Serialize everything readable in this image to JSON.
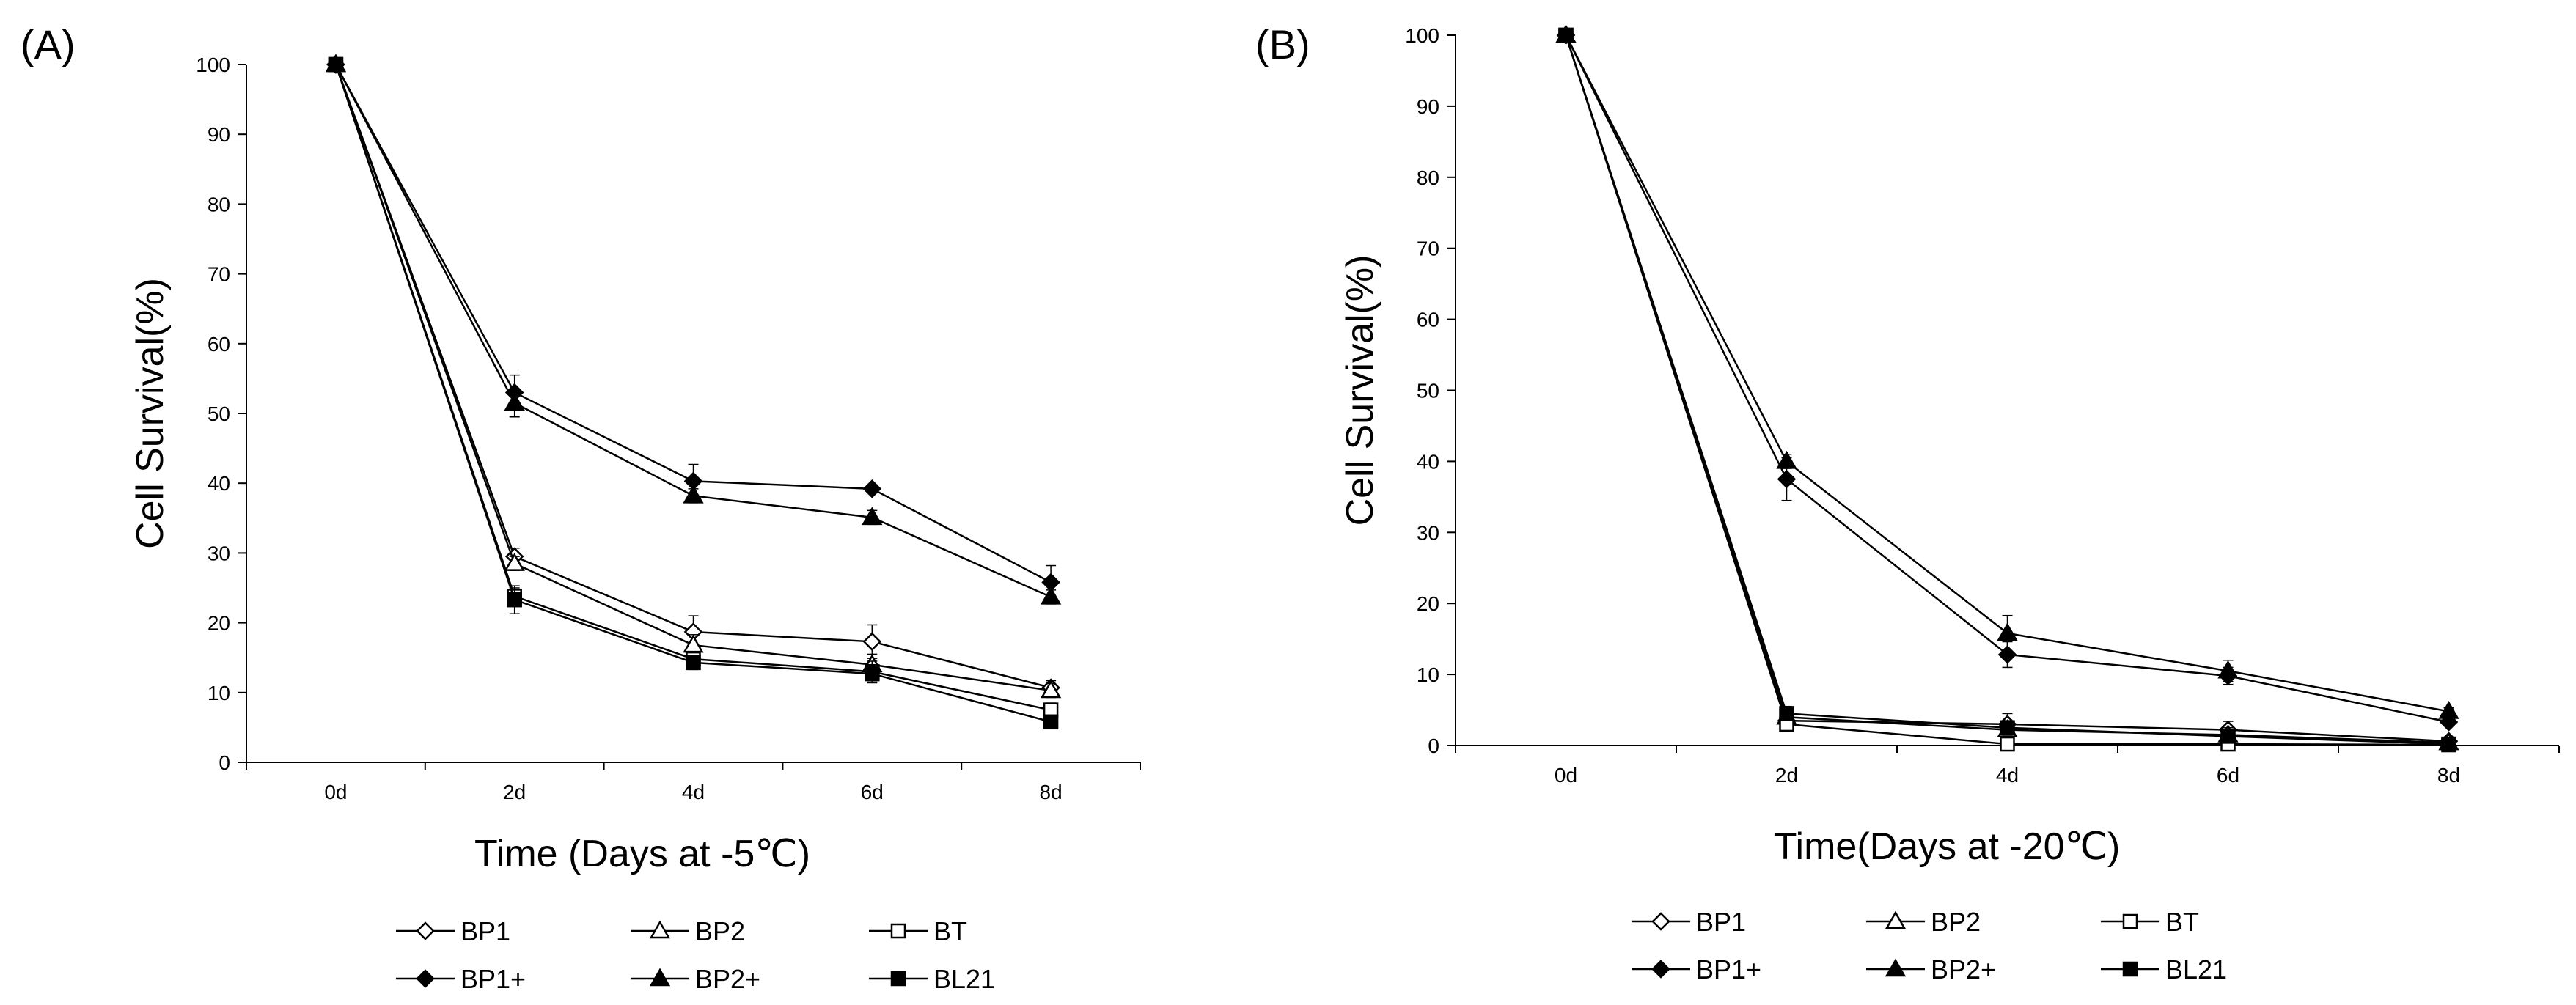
{
  "chart_data": [
    {
      "type": "line",
      "panel_label": "(A)",
      "xlabel": "Time (Days at -5℃)",
      "ylabel": "Cell Survival(%)",
      "categories": [
        "0d",
        "2d",
        "4d",
        "6d",
        "8d"
      ],
      "ylim": [
        0,
        100
      ],
      "yticks": [
        "0",
        "10",
        "20",
        "30",
        "40",
        "50",
        "60",
        "70",
        "80",
        "90",
        "100"
      ],
      "legend_position": "bottom",
      "series": [
        {
          "name": "BP1",
          "marker": "diamond-open",
          "values": [
            100,
            29.5,
            18.7,
            17.3,
            10.7
          ],
          "errors": [
            0,
            1.2,
            2.3,
            2.4,
            1.0
          ]
        },
        {
          "name": "BP2",
          "marker": "triangle-open",
          "values": [
            100,
            28.5,
            16.8,
            14.0,
            10.3
          ],
          "errors": [
            0,
            1.0,
            1.5,
            1.5,
            1.0
          ]
        },
        {
          "name": "BT",
          "marker": "square-open",
          "values": [
            100,
            23.8,
            14.8,
            13.0,
            7.5
          ],
          "errors": [
            0,
            1.2,
            1.0,
            1.5,
            1.0
          ]
        },
        {
          "name": "BP1+",
          "marker": "diamond",
          "values": [
            100,
            53.0,
            40.3,
            39.2,
            25.8
          ],
          "errors": [
            0,
            2.5,
            2.4,
            0.6,
            2.4
          ]
        },
        {
          "name": "BP2+",
          "marker": "triangle",
          "values": [
            100,
            51.5,
            38.2,
            35.1,
            23.7
          ],
          "errors": [
            0,
            2.0,
            1.0,
            1.0,
            1.0
          ]
        },
        {
          "name": "BL21",
          "marker": "square",
          "values": [
            100,
            23.3,
            14.3,
            12.7,
            5.8
          ],
          "errors": [
            0,
            2.0,
            1.0,
            1.3,
            0.8
          ]
        }
      ]
    },
    {
      "type": "line",
      "panel_label": "(B)",
      "xlabel": "Time(Days at -20℃)",
      "ylabel": "Cell Survival(%)",
      "categories": [
        "0d",
        "2d",
        "4d",
        "6d",
        "8d"
      ],
      "ylim": [
        0,
        100
      ],
      "yticks": [
        "0",
        "10",
        "20",
        "30",
        "40",
        "50",
        "60",
        "70",
        "80",
        "90",
        "100"
      ],
      "legend_position": "bottom",
      "series": [
        {
          "name": "BP1",
          "marker": "diamond-open",
          "values": [
            100,
            3.5,
            3.0,
            2.2,
            0.6
          ],
          "errors": [
            0,
            1.5,
            1.5,
            1.2,
            0.5
          ]
        },
        {
          "name": "BP2",
          "marker": "triangle-open",
          "values": [
            100,
            4.0,
            2.2,
            1.5,
            0.4
          ],
          "errors": [
            0,
            1.2,
            1.0,
            1.0,
            0.4
          ]
        },
        {
          "name": "BT",
          "marker": "square-open",
          "values": [
            100,
            3.0,
            0.2,
            0.2,
            0.1
          ],
          "errors": [
            0,
            1.0,
            0.3,
            0.3,
            0.2
          ]
        },
        {
          "name": "BP1+",
          "marker": "diamond",
          "values": [
            100,
            37.5,
            12.8,
            9.8,
            3.3
          ],
          "errors": [
            0,
            3.0,
            1.8,
            1.2,
            0.5
          ]
        },
        {
          "name": "BP2+",
          "marker": "triangle",
          "values": [
            100,
            40.0,
            15.8,
            10.5,
            4.8
          ],
          "errors": [
            0,
            1.0,
            2.5,
            1.5,
            0.5
          ]
        },
        {
          "name": "BL21",
          "marker": "square",
          "values": [
            100,
            4.5,
            2.5,
            1.3,
            0.2
          ],
          "errors": [
            0,
            1.0,
            1.0,
            0.8,
            0.3
          ]
        }
      ]
    }
  ]
}
